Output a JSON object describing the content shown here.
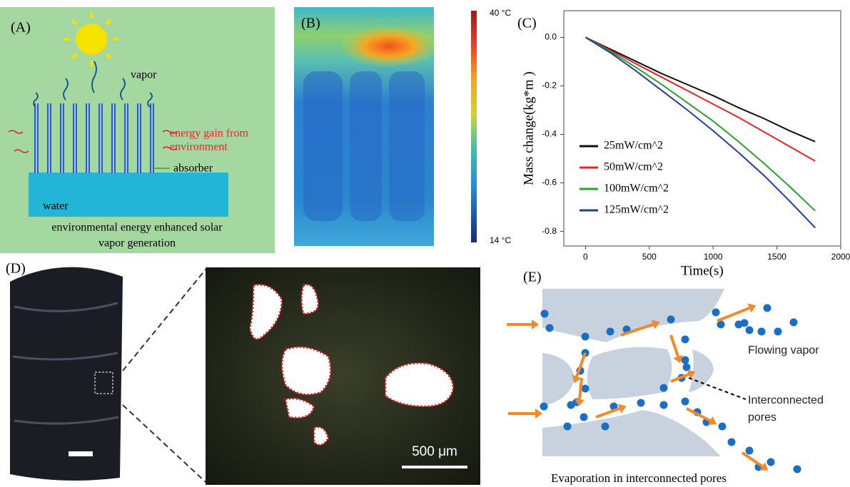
{
  "panel_a": {
    "label": "(A)",
    "vapor": "vapor",
    "energy_gain": [
      "energy gain from",
      "environment"
    ],
    "absorber": "absorber",
    "water": "water",
    "caption": [
      "environmental energy enhanced solar",
      "vapor generation"
    ]
  },
  "panel_b": {
    "label": "(B)",
    "colorbar_max": "40 °C",
    "colorbar_min": "14 °C"
  },
  "chart_data": {
    "type": "line",
    "panel_label": "(C)",
    "x_label": "Time(s)",
    "y_label": "Mass change(kg*m   )",
    "x": [
      0,
      200,
      400,
      600,
      800,
      1000,
      1200,
      1400,
      1600,
      1800
    ],
    "series": [
      {
        "name": "25mW/cm^2",
        "color": "#111111",
        "values": [
          0,
          -0.05,
          -0.1,
          -0.15,
          -0.195,
          -0.24,
          -0.29,
          -0.335,
          -0.385,
          -0.43
        ]
      },
      {
        "name": "50mW/cm^2",
        "color": "#e8232a",
        "values": [
          0,
          -0.055,
          -0.11,
          -0.165,
          -0.22,
          -0.275,
          -0.33,
          -0.39,
          -0.45,
          -0.51
        ]
      },
      {
        "name": "100mW/cm^2",
        "color": "#2ca02c",
        "values": [
          0,
          -0.06,
          -0.125,
          -0.195,
          -0.27,
          -0.345,
          -0.43,
          -0.52,
          -0.615,
          -0.715
        ]
      },
      {
        "name": "125mW/cm^2",
        "color": "#1f3f99",
        "values": [
          0,
          -0.065,
          -0.14,
          -0.22,
          -0.3,
          -0.385,
          -0.475,
          -0.57,
          -0.675,
          -0.785
        ]
      }
    ],
    "xlim": [
      -170,
      2000
    ],
    "ylim": [
      -0.86,
      0.11
    ],
    "xticks": [
      0,
      500,
      1000,
      1500,
      2000
    ],
    "yticks": [
      {
        "value": 0,
        "label": "0.0"
      },
      -0.2,
      -0.4,
      -0.6,
      -0.8
    ],
    "legend": "left"
  },
  "panel_d": {
    "label": "(D)",
    "scale": "500 μm"
  },
  "panel_e": {
    "label": "(E)",
    "flowing": "Flowing vapor",
    "pores": [
      "Interconnected",
      "pores"
    ],
    "caption": "Evaporation in interconnected pores"
  }
}
